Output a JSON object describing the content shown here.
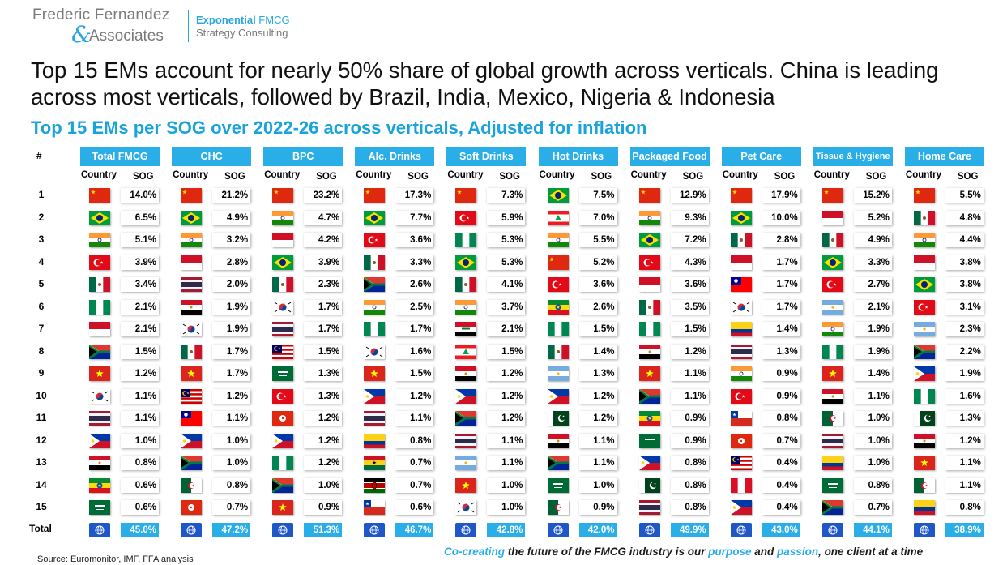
{
  "logo": {
    "firm_line1": "Frederic Fernandez",
    "ampersand": "&",
    "firm_line2": "Associates",
    "tagline_strong": "Exponential",
    "tagline_rest": " FMCG",
    "tagline_line2": "Strategy Consulting"
  },
  "headline": "Top 15 EMs account for nearly 50% share of global growth across verticals. China is leading across most verticals, followed by Brazil, India, Mexico, Nigeria & Indonesia",
  "subheadline": "Top 15 EMs per SOG over 2022-26 across verticals, Adjusted for inflation",
  "table_labels": {
    "rank_header": "#",
    "country_header": "Country",
    "sog_header": "SOG",
    "total_label": "Total",
    "ranks": [
      "1",
      "2",
      "3",
      "4",
      "5",
      "6",
      "7",
      "8",
      "9",
      "10",
      "11",
      "12",
      "13",
      "14",
      "15"
    ]
  },
  "colors": {
    "accent": "#2aaee8",
    "subhead": "#19a3dc",
    "globe": "#1f57c8"
  },
  "chart_data": {
    "type": "table",
    "title": "Top 15 EMs per SOG over 2022-26 across verticals, Adjusted for inflation",
    "verticals": [
      {
        "name": "Total FMCG",
        "countries": [
          "China",
          "Brazil",
          "India",
          "Turkey",
          "Mexico",
          "Nigeria",
          "Indonesia",
          "South Africa",
          "Vietnam",
          "South Korea",
          "Thailand",
          "Philippines",
          "Egypt",
          "Ethiopia",
          "Saudi Arabia"
        ],
        "sog": [
          "14.0%",
          "6.5%",
          "5.1%",
          "3.9%",
          "3.4%",
          "2.1%",
          "2.1%",
          "1.5%",
          "1.2%",
          "1.1%",
          "1.1%",
          "1.0%",
          "0.8%",
          "0.6%",
          "0.6%"
        ],
        "total": "45.0%"
      },
      {
        "name": "CHC",
        "countries": [
          "China",
          "Brazil",
          "India",
          "Indonesia",
          "Thailand",
          "Egypt",
          "South Korea",
          "Mexico",
          "Vietnam",
          "Malaysia",
          "Taiwan",
          "Philippines",
          "South Africa",
          "Algeria",
          "Hong Kong"
        ],
        "sog": [
          "21.2%",
          "4.9%",
          "3.2%",
          "2.8%",
          "2.0%",
          "1.9%",
          "1.9%",
          "1.7%",
          "1.7%",
          "1.2%",
          "1.1%",
          "1.0%",
          "1.0%",
          "0.8%",
          "0.7%"
        ],
        "total": "47.2%"
      },
      {
        "name": "BPC",
        "countries": [
          "China",
          "India",
          "Indonesia",
          "Brazil",
          "Mexico",
          "South Korea",
          "Thailand",
          "Malaysia",
          "Saudi Arabia",
          "Turkey",
          "Hong Kong",
          "Philippines",
          "Nigeria",
          "South Africa",
          "Vietnam"
        ],
        "sog": [
          "23.2%",
          "4.7%",
          "4.2%",
          "3.9%",
          "2.3%",
          "1.7%",
          "1.7%",
          "1.5%",
          "1.3%",
          "1.3%",
          "1.2%",
          "1.2%",
          "1.2%",
          "1.0%",
          "0.9%"
        ],
        "total": "51.3%"
      },
      {
        "name": "Alc. Drinks",
        "countries": [
          "China",
          "Brazil",
          "Turkey",
          "Mexico",
          "South Africa",
          "India",
          "Nigeria",
          "South Korea",
          "Vietnam",
          "Philippines",
          "Thailand",
          "Colombia",
          "Ghana",
          "Kenya",
          "Chile"
        ],
        "sog": [
          "17.3%",
          "7.7%",
          "3.6%",
          "3.3%",
          "2.6%",
          "2.5%",
          "1.7%",
          "1.6%",
          "1.5%",
          "1.2%",
          "1.1%",
          "0.8%",
          "0.7%",
          "0.7%",
          "0.6%"
        ],
        "total": "46.7%"
      },
      {
        "name": "Soft Drinks",
        "countries": [
          "China",
          "Turkey",
          "Nigeria",
          "Brazil",
          "Mexico",
          "India",
          "Iraq",
          "Lebanon",
          "Egypt",
          "Philippines",
          "South Africa",
          "Thailand",
          "Argentina",
          "Vietnam",
          "South Korea"
        ],
        "sog": [
          "7.3%",
          "5.9%",
          "5.3%",
          "5.3%",
          "4.1%",
          "3.7%",
          "2.1%",
          "1.5%",
          "1.2%",
          "1.2%",
          "1.2%",
          "1.1%",
          "1.1%",
          "1.0%",
          "1.0%"
        ],
        "total": "42.8%"
      },
      {
        "name": "Hot Drinks",
        "countries": [
          "Brazil",
          "Lebanon",
          "India",
          "China",
          "Turkey",
          "Ethiopia",
          "Nigeria",
          "Mexico",
          "Argentina",
          "Philippines",
          "Pakistan",
          "Egypt",
          "South Africa",
          "Saudi Arabia",
          "Algeria"
        ],
        "sog": [
          "7.5%",
          "7.0%",
          "5.5%",
          "5.2%",
          "3.6%",
          "2.6%",
          "1.5%",
          "1.4%",
          "1.3%",
          "1.2%",
          "1.2%",
          "1.1%",
          "1.1%",
          "1.0%",
          "0.9%"
        ],
        "total": "42.0%"
      },
      {
        "name": "Packaged Food",
        "countries": [
          "China",
          "India",
          "Brazil",
          "Turkey",
          "Indonesia",
          "Mexico",
          "Nigeria",
          "Egypt",
          "Vietnam",
          "South Africa",
          "Ethiopia",
          "Saudi Arabia",
          "Philippines",
          "Pakistan",
          "Thailand"
        ],
        "sog": [
          "12.9%",
          "9.3%",
          "7.2%",
          "4.3%",
          "3.6%",
          "3.5%",
          "1.5%",
          "1.2%",
          "1.1%",
          "1.1%",
          "0.9%",
          "0.9%",
          "0.8%",
          "0.8%",
          "0.8%"
        ],
        "total": "49.9%"
      },
      {
        "name": "Pet Care",
        "countries": [
          "China",
          "Brazil",
          "Mexico",
          "Indonesia",
          "Taiwan",
          "South Korea",
          "Colombia",
          "Thailand",
          "India",
          "Turkey",
          "Chile",
          "Hong Kong",
          "Malaysia",
          "Peru",
          "Philippines"
        ],
        "sog": [
          "17.9%",
          "10.0%",
          "2.8%",
          "1.7%",
          "1.7%",
          "1.7%",
          "1.4%",
          "1.3%",
          "0.9%",
          "0.9%",
          "0.8%",
          "0.7%",
          "0.4%",
          "0.4%",
          "0.4%"
        ],
        "total": "43.0%"
      },
      {
        "name": "Tissue & Hygiene",
        "countries": [
          "China",
          "Indonesia",
          "Mexico",
          "Brazil",
          "Turkey",
          "Argentina",
          "India",
          "Nigeria",
          "Vietnam",
          "Egypt",
          "Algeria",
          "Thailand",
          "Colombia",
          "Saudi Arabia",
          "South Africa"
        ],
        "sog": [
          "15.2%",
          "5.2%",
          "4.9%",
          "3.3%",
          "2.7%",
          "2.1%",
          "1.9%",
          "1.9%",
          "1.4%",
          "1.1%",
          "1.0%",
          "1.0%",
          "1.0%",
          "0.8%",
          "0.7%"
        ],
        "total": "44.1%"
      },
      {
        "name": "Home Care",
        "countries": [
          "China",
          "Mexico",
          "India",
          "Indonesia",
          "Brazil",
          "Turkey",
          "Argentina",
          "South Africa",
          "Philippines",
          "Nigeria",
          "Pakistan",
          "Egypt",
          "Vietnam",
          "Algeria",
          "Colombia"
        ],
        "sog": [
          "5.5%",
          "4.8%",
          "4.4%",
          "3.8%",
          "3.8%",
          "3.1%",
          "2.3%",
          "2.2%",
          "1.9%",
          "1.6%",
          "1.3%",
          "1.2%",
          "1.1%",
          "1.1%",
          "0.8%"
        ],
        "total": "38.9%"
      }
    ]
  },
  "source": "Source: Euromonitor, IMF, FFA analysis",
  "footer": {
    "p1": "Co-creating",
    "p2": " the future of the FMCG industry is our ",
    "p3": "purpose",
    "p4": " and ",
    "p5": "passion",
    "p6": ", one client at a time"
  }
}
